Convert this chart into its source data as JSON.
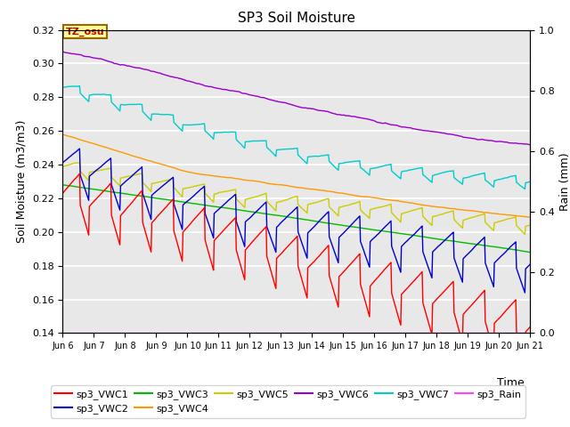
{
  "title": "SP3 Soil Moisture",
  "xlabel": "Time",
  "ylabel_left": "Soil Moisture (m3/m3)",
  "ylabel_right": "Rain (mm)",
  "xlim_days": [
    6,
    21
  ],
  "ylim_left": [
    0.14,
    0.32
  ],
  "ylim_right": [
    0.0,
    1.0
  ],
  "yticks_left": [
    0.14,
    0.16,
    0.18,
    0.2,
    0.22,
    0.24,
    0.26,
    0.28,
    0.3,
    0.32
  ],
  "yticks_right": [
    0.0,
    0.2,
    0.4,
    0.6,
    0.8,
    1.0
  ],
  "xtick_labels": [
    "Jun 6",
    "Jun 7",
    "Jun 8",
    "Jun 9",
    "Jun 10",
    "Jun 11",
    "Jun 12",
    "Jun 13",
    "Jun 14",
    "Jun 15",
    "Jun 16",
    "Jun 17",
    "Jun 18",
    "Jun 19",
    "Jun 20",
    "Jun 21"
  ],
  "xtick_positions": [
    6,
    7,
    8,
    9,
    10,
    11,
    12,
    13,
    14,
    15,
    16,
    17,
    18,
    19,
    20,
    21
  ],
  "background_color": "#e8e8e8",
  "grid_color": "#ffffff",
  "annotation_text": "TZ_osu",
  "annotation_bg": "#ffff99",
  "annotation_border": "#996600",
  "colors": {
    "sp3_VWC1": "#ff0000",
    "sp3_VWC2": "#0000cc",
    "sp3_VWC3": "#00bb00",
    "sp3_VWC4": "#ff9900",
    "sp3_VWC5": "#cccc00",
    "sp3_VWC6": "#9900cc",
    "sp3_VWC7": "#00cccc",
    "sp3_Rain": "#ff44ff"
  },
  "linewidth": 1.0
}
